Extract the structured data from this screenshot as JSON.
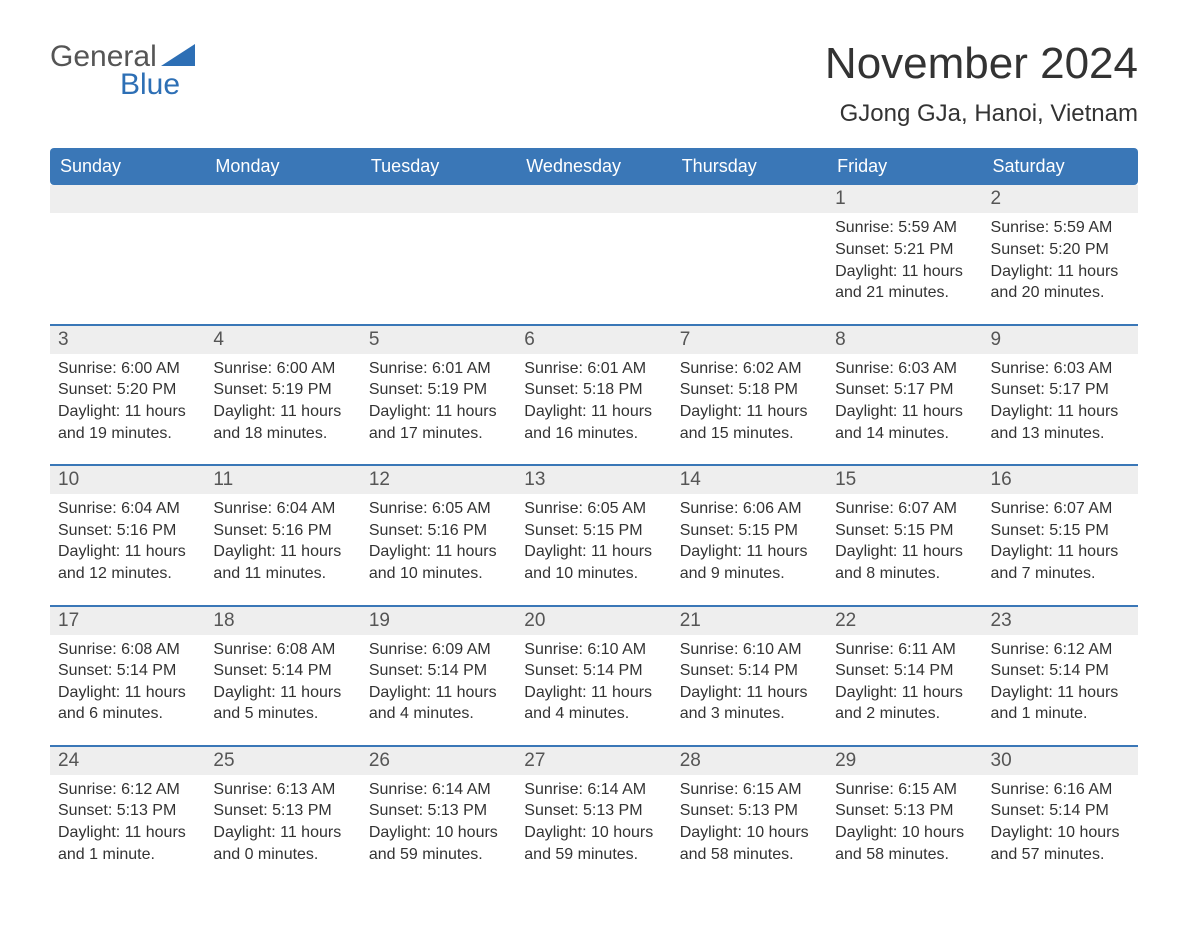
{
  "colors": {
    "header_bg": "#3a77b7",
    "header_text": "#ffffff",
    "row_divider": "#3a77b7",
    "daynum_bg": "#eeeeee",
    "body_text": "#333333",
    "logo_gray": "#555555",
    "logo_blue": "#2d6fb5",
    "page_bg": "#ffffff"
  },
  "typography": {
    "title_fontsize": 44,
    "location_fontsize": 24,
    "header_fontsize": 18,
    "daynum_fontsize": 19,
    "content_fontsize": 16,
    "logo_fontsize": 30
  },
  "logo": {
    "line1": "General",
    "line2": "Blue"
  },
  "title": "November 2024",
  "location": "GJong GJa, Hanoi, Vietnam",
  "weekdays": [
    "Sunday",
    "Monday",
    "Tuesday",
    "Wednesday",
    "Thursday",
    "Friday",
    "Saturday"
  ],
  "weeks": [
    [
      null,
      null,
      null,
      null,
      null,
      {
        "day": "1",
        "sunrise": "Sunrise: 5:59 AM",
        "sunset": "Sunset: 5:21 PM",
        "daylight1": "Daylight: 11 hours",
        "daylight2": "and 21 minutes."
      },
      {
        "day": "2",
        "sunrise": "Sunrise: 5:59 AM",
        "sunset": "Sunset: 5:20 PM",
        "daylight1": "Daylight: 11 hours",
        "daylight2": "and 20 minutes."
      }
    ],
    [
      {
        "day": "3",
        "sunrise": "Sunrise: 6:00 AM",
        "sunset": "Sunset: 5:20 PM",
        "daylight1": "Daylight: 11 hours",
        "daylight2": "and 19 minutes."
      },
      {
        "day": "4",
        "sunrise": "Sunrise: 6:00 AM",
        "sunset": "Sunset: 5:19 PM",
        "daylight1": "Daylight: 11 hours",
        "daylight2": "and 18 minutes."
      },
      {
        "day": "5",
        "sunrise": "Sunrise: 6:01 AM",
        "sunset": "Sunset: 5:19 PM",
        "daylight1": "Daylight: 11 hours",
        "daylight2": "and 17 minutes."
      },
      {
        "day": "6",
        "sunrise": "Sunrise: 6:01 AM",
        "sunset": "Sunset: 5:18 PM",
        "daylight1": "Daylight: 11 hours",
        "daylight2": "and 16 minutes."
      },
      {
        "day": "7",
        "sunrise": "Sunrise: 6:02 AM",
        "sunset": "Sunset: 5:18 PM",
        "daylight1": "Daylight: 11 hours",
        "daylight2": "and 15 minutes."
      },
      {
        "day": "8",
        "sunrise": "Sunrise: 6:03 AM",
        "sunset": "Sunset: 5:17 PM",
        "daylight1": "Daylight: 11 hours",
        "daylight2": "and 14 minutes."
      },
      {
        "day": "9",
        "sunrise": "Sunrise: 6:03 AM",
        "sunset": "Sunset: 5:17 PM",
        "daylight1": "Daylight: 11 hours",
        "daylight2": "and 13 minutes."
      }
    ],
    [
      {
        "day": "10",
        "sunrise": "Sunrise: 6:04 AM",
        "sunset": "Sunset: 5:16 PM",
        "daylight1": "Daylight: 11 hours",
        "daylight2": "and 12 minutes."
      },
      {
        "day": "11",
        "sunrise": "Sunrise: 6:04 AM",
        "sunset": "Sunset: 5:16 PM",
        "daylight1": "Daylight: 11 hours",
        "daylight2": "and 11 minutes."
      },
      {
        "day": "12",
        "sunrise": "Sunrise: 6:05 AM",
        "sunset": "Sunset: 5:16 PM",
        "daylight1": "Daylight: 11 hours",
        "daylight2": "and 10 minutes."
      },
      {
        "day": "13",
        "sunrise": "Sunrise: 6:05 AM",
        "sunset": "Sunset: 5:15 PM",
        "daylight1": "Daylight: 11 hours",
        "daylight2": "and 10 minutes."
      },
      {
        "day": "14",
        "sunrise": "Sunrise: 6:06 AM",
        "sunset": "Sunset: 5:15 PM",
        "daylight1": "Daylight: 11 hours",
        "daylight2": "and 9 minutes."
      },
      {
        "day": "15",
        "sunrise": "Sunrise: 6:07 AM",
        "sunset": "Sunset: 5:15 PM",
        "daylight1": "Daylight: 11 hours",
        "daylight2": "and 8 minutes."
      },
      {
        "day": "16",
        "sunrise": "Sunrise: 6:07 AM",
        "sunset": "Sunset: 5:15 PM",
        "daylight1": "Daylight: 11 hours",
        "daylight2": "and 7 minutes."
      }
    ],
    [
      {
        "day": "17",
        "sunrise": "Sunrise: 6:08 AM",
        "sunset": "Sunset: 5:14 PM",
        "daylight1": "Daylight: 11 hours",
        "daylight2": "and 6 minutes."
      },
      {
        "day": "18",
        "sunrise": "Sunrise: 6:08 AM",
        "sunset": "Sunset: 5:14 PM",
        "daylight1": "Daylight: 11 hours",
        "daylight2": "and 5 minutes."
      },
      {
        "day": "19",
        "sunrise": "Sunrise: 6:09 AM",
        "sunset": "Sunset: 5:14 PM",
        "daylight1": "Daylight: 11 hours",
        "daylight2": "and 4 minutes."
      },
      {
        "day": "20",
        "sunrise": "Sunrise: 6:10 AM",
        "sunset": "Sunset: 5:14 PM",
        "daylight1": "Daylight: 11 hours",
        "daylight2": "and 4 minutes."
      },
      {
        "day": "21",
        "sunrise": "Sunrise: 6:10 AM",
        "sunset": "Sunset: 5:14 PM",
        "daylight1": "Daylight: 11 hours",
        "daylight2": "and 3 minutes."
      },
      {
        "day": "22",
        "sunrise": "Sunrise: 6:11 AM",
        "sunset": "Sunset: 5:14 PM",
        "daylight1": "Daylight: 11 hours",
        "daylight2": "and 2 minutes."
      },
      {
        "day": "23",
        "sunrise": "Sunrise: 6:12 AM",
        "sunset": "Sunset: 5:14 PM",
        "daylight1": "Daylight: 11 hours",
        "daylight2": "and 1 minute."
      }
    ],
    [
      {
        "day": "24",
        "sunrise": "Sunrise: 6:12 AM",
        "sunset": "Sunset: 5:13 PM",
        "daylight1": "Daylight: 11 hours",
        "daylight2": "and 1 minute."
      },
      {
        "day": "25",
        "sunrise": "Sunrise: 6:13 AM",
        "sunset": "Sunset: 5:13 PM",
        "daylight1": "Daylight: 11 hours",
        "daylight2": "and 0 minutes."
      },
      {
        "day": "26",
        "sunrise": "Sunrise: 6:14 AM",
        "sunset": "Sunset: 5:13 PM",
        "daylight1": "Daylight: 10 hours",
        "daylight2": "and 59 minutes."
      },
      {
        "day": "27",
        "sunrise": "Sunrise: 6:14 AM",
        "sunset": "Sunset: 5:13 PM",
        "daylight1": "Daylight: 10 hours",
        "daylight2": "and 59 minutes."
      },
      {
        "day": "28",
        "sunrise": "Sunrise: 6:15 AM",
        "sunset": "Sunset: 5:13 PM",
        "daylight1": "Daylight: 10 hours",
        "daylight2": "and 58 minutes."
      },
      {
        "day": "29",
        "sunrise": "Sunrise: 6:15 AM",
        "sunset": "Sunset: 5:13 PM",
        "daylight1": "Daylight: 10 hours",
        "daylight2": "and 58 minutes."
      },
      {
        "day": "30",
        "sunrise": "Sunrise: 6:16 AM",
        "sunset": "Sunset: 5:14 PM",
        "daylight1": "Daylight: 10 hours",
        "daylight2": "and 57 minutes."
      }
    ]
  ]
}
